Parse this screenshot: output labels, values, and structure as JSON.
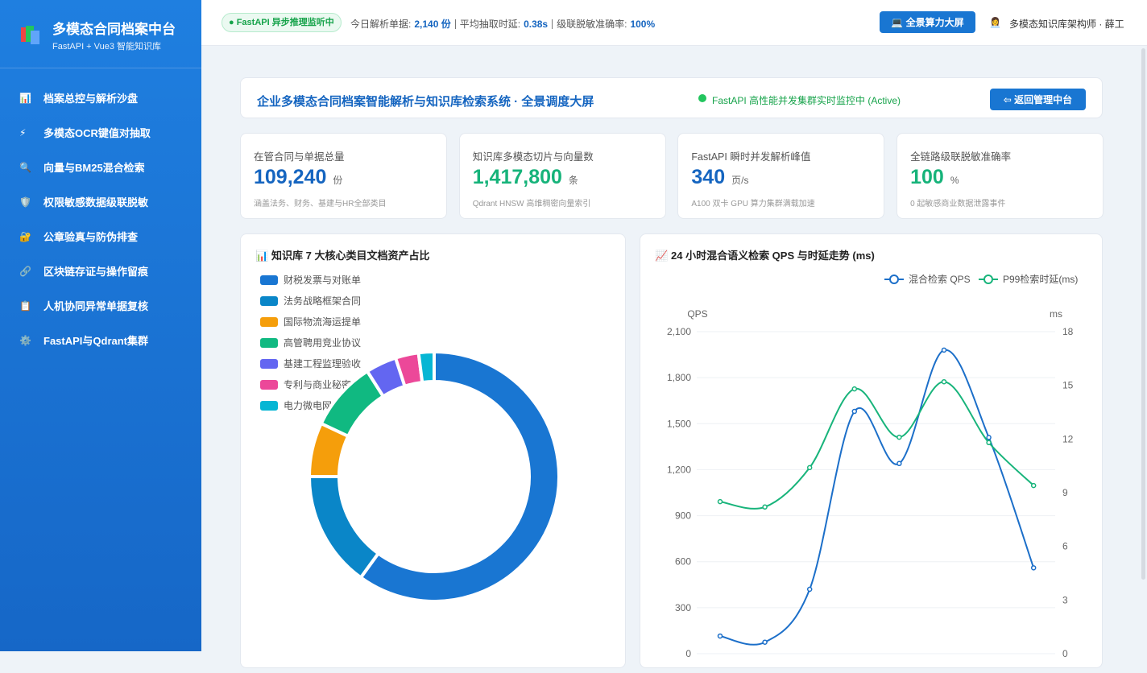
{
  "sidebar": {
    "title": "多模态合同档案中台",
    "subtitle": "FastAPI + Vue3 智能知识库",
    "menu": [
      {
        "icon": "📊",
        "label": "档案总控与解析沙盘"
      },
      {
        "icon": "⚡",
        "label": "多模态OCR键值对抽取"
      },
      {
        "icon": "🔍",
        "label": "向量与BM25混合检索"
      },
      {
        "icon": "🛡️",
        "label": "权限敏感数据级联脱敏"
      },
      {
        "icon": "🔐",
        "label": "公章验真与防伪排查"
      },
      {
        "icon": "🔗",
        "label": "区块链存证与操作留痕"
      },
      {
        "icon": "📋",
        "label": "人机协同异常单据复核"
      },
      {
        "icon": "⚙️",
        "label": "FastAPI与Qdrant集群"
      }
    ]
  },
  "topbar": {
    "badge": "● FastAPI 异步推理监听中",
    "stats": [
      {
        "label": "今日解析单据:",
        "value": "2,140 份"
      },
      {
        "label": "平均抽取时延:",
        "value": "0.38s"
      },
      {
        "label": "级联脱敏准确率:",
        "value": "100%"
      }
    ],
    "button": "💻 全景算力大屏",
    "user_icon": "👩‍💼",
    "user": "多模态知识库架构师 · 薛工"
  },
  "header": {
    "title": "企业多模态合同档案智能解析与知识库检索系统 · 全景调度大屏",
    "status": "FastAPI 高性能并发集群实时监控中 (Active)",
    "button": "⇦ 返回管理中台"
  },
  "kpis": [
    {
      "label": "在管合同与单据总量",
      "value": "109,240",
      "unit": "份",
      "note": "涵盖法务、财务、基建与HR全部类目",
      "color": "#1565c0"
    },
    {
      "label": "知识库多模态切片与向量数",
      "value": "1,417,800",
      "unit": "条",
      "note": "Qdrant HNSW 高维稠密向量索引",
      "color": "#16b37a"
    },
    {
      "label": "FastAPI 瞬时并发解析峰值",
      "value": "340",
      "unit": "页/s",
      "note": "A100 双卡 GPU 算力集群满载加速",
      "color": "#1565c0"
    },
    {
      "label": "全链路级联脱敏准确率",
      "value": "100",
      "unit": "%",
      "note": "0 起敏感商业数据泄露事件",
      "color": "#16b37a"
    }
  ],
  "chart_data": [
    {
      "type": "pie",
      "title_icon": "📊",
      "title": "知识库 7 大核心类目文档资产占比",
      "categories": [
        "财税发票与对账单",
        "法务战略框架合同",
        "国际物流海运提单",
        "高管聘用竞业协议",
        "基建工程监理验收",
        "专利与商业秘密",
        "电力微电网结算单"
      ],
      "values": [
        60,
        15,
        7,
        9,
        4,
        3,
        2
      ],
      "colors": [
        "#1976d2",
        "#0a86c8",
        "#f59e0b",
        "#10b981",
        "#6366f1",
        "#ec4899",
        "#06b6d4"
      ]
    },
    {
      "type": "line",
      "title_icon": "📈",
      "title": "24 小时混合语义检索 QPS 与时延走势 (ms)",
      "categories": [
        null,
        null,
        null,
        null,
        null,
        null,
        null,
        null
      ],
      "y_label": "QPS",
      "y2_label": "ms",
      "ylim": [
        0,
        2100
      ],
      "yticks": [
        0,
        {
          "value": 300,
          "label": "300"
        },
        600,
        900,
        {
          "value": 1200,
          "label": "1,200"
        },
        {
          "value": 1500,
          "label": "1,500"
        },
        {
          "value": 1800,
          "label": "1,800"
        },
        {
          "value": 2100,
          "label": "2,100"
        }
      ],
      "y2lim": [
        0,
        18
      ],
      "y2ticks": [
        0,
        3,
        6,
        9,
        12,
        15,
        18
      ],
      "grid": true,
      "series": [
        {
          "name": "混合检索 QPS",
          "color": "#1c6fc9",
          "values": [
            115,
            75,
            420,
            1580,
            1240,
            1980,
            1410,
            560
          ]
        },
        {
          "name": "P99检索时延(ms)",
          "color": "#18b47b",
          "axis": "y2",
          "values": [
            8.5,
            8.2,
            10.4,
            14.8,
            12.1,
            15.2,
            11.8,
            9.4
          ]
        }
      ]
    }
  ]
}
